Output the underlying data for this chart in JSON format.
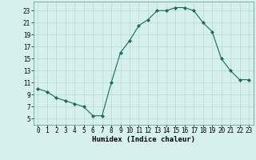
{
  "x": [
    0,
    1,
    2,
    3,
    4,
    5,
    6,
    7,
    8,
    9,
    10,
    11,
    12,
    13,
    14,
    15,
    16,
    17,
    18,
    19,
    20,
    21,
    22,
    23
  ],
  "y": [
    10.0,
    9.5,
    8.5,
    8.0,
    7.5,
    7.0,
    5.5,
    5.5,
    11.0,
    16.0,
    18.0,
    20.5,
    21.5,
    23.0,
    23.0,
    23.5,
    23.5,
    23.0,
    21.0,
    19.5,
    15.0,
    13.0,
    11.5,
    11.5
  ],
  "line_color": "#1a6b5a",
  "marker": "D",
  "marker_size": 2,
  "bg_color": "#d6f0ee",
  "grid_major_color": "#b8d8d4",
  "grid_minor_color": "#c8e8e4",
  "xlabel": "Humidex (Indice chaleur)",
  "xlim": [
    -0.5,
    23.5
  ],
  "ylim": [
    4,
    24.5
  ],
  "yticks": [
    5,
    7,
    9,
    11,
    13,
    15,
    17,
    19,
    21,
    23
  ],
  "xticks": [
    0,
    1,
    2,
    3,
    4,
    5,
    6,
    7,
    8,
    9,
    10,
    11,
    12,
    13,
    14,
    15,
    16,
    17,
    18,
    19,
    20,
    21,
    22,
    23
  ],
  "xlabel_fontsize": 6.5,
  "tick_fontsize": 5.5
}
